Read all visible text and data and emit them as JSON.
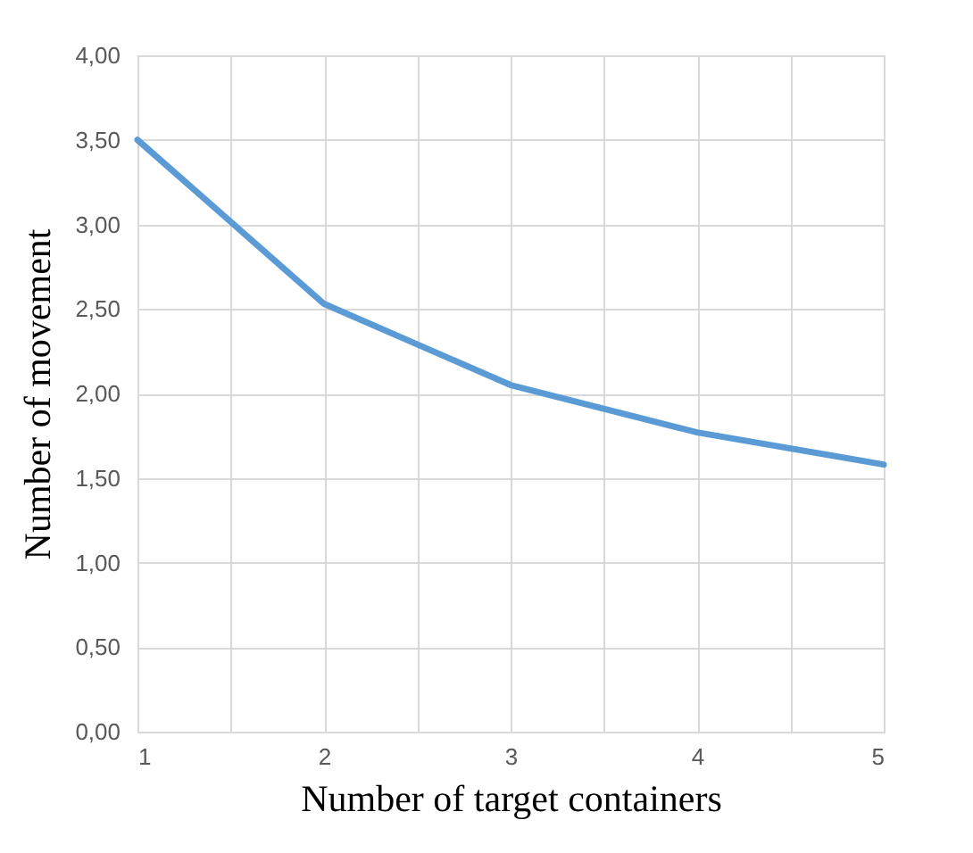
{
  "chart_data": {
    "type": "line",
    "xlabel": "Number of target containers",
    "ylabel": "Number of movement",
    "x": [
      1,
      2,
      3,
      4,
      5
    ],
    "series": [
      {
        "color": "#5b9bd5",
        "values": [
          3.5,
          2.53,
          2.05,
          1.77,
          1.58
        ]
      }
    ],
    "xlim": [
      1,
      5
    ],
    "xticks": [
      1,
      {
        "value": 1.5,
        "label": null
      },
      2,
      {
        "value": 2.5,
        "label": null
      },
      3,
      {
        "value": 3.5,
        "label": null
      },
      4,
      {
        "value": 4.5,
        "label": null
      },
      5
    ],
    "ylim": [
      0,
      4
    ],
    "yticks": [
      {
        "value": 0,
        "label": "0,00"
      },
      {
        "value": 0.5,
        "label": "0,50"
      },
      {
        "value": 1,
        "label": "1,00"
      },
      {
        "value": 1.5,
        "label": "1,50"
      },
      {
        "value": 2,
        "label": "2,00"
      },
      {
        "value": 2.5,
        "label": "2,50"
      },
      {
        "value": 3,
        "label": "3,00"
      },
      {
        "value": 3.5,
        "label": "3,50"
      },
      {
        "value": 4,
        "label": "4,00"
      }
    ],
    "grid": true,
    "marker": "none",
    "line_style": "solid",
    "legend": false
  }
}
